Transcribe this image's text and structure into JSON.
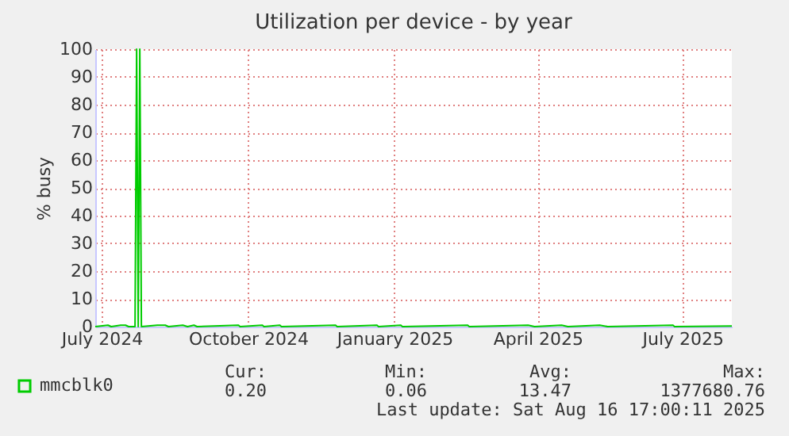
{
  "chart_data": {
    "type": "line",
    "title": "Utilization per device - by year",
    "ylabel": "% busy",
    "x": [
      "2024-07-12",
      "2024-07-20",
      "2024-07-22",
      "2024-07-28",
      "2024-07-31",
      "2024-08-02",
      "2024-08-06",
      "2024-08-07",
      "2024-08-08",
      "2024-08-09",
      "2024-08-10",
      "2024-08-20",
      "2024-08-25",
      "2024-08-27",
      "2024-09-05",
      "2024-09-08",
      "2024-09-12",
      "2024-09-14",
      "2024-10-10",
      "2024-10-11",
      "2024-10-25",
      "2024-10-26",
      "2024-11-05",
      "2024-11-06",
      "2024-12-10",
      "2024-12-11",
      "2025-01-05",
      "2025-01-06",
      "2025-01-20",
      "2025-01-21",
      "2025-03-03",
      "2025-03-04",
      "2025-04-10",
      "2025-04-14",
      "2025-05-01",
      "2025-05-05",
      "2025-05-25",
      "2025-05-30",
      "2025-07-10",
      "2025-07-11",
      "2025-08-16"
    ],
    "series": [
      {
        "name": "mmcblk0",
        "color": "#00cc00",
        "values": [
          0,
          0.5,
          0,
          0.5,
          0.5,
          0,
          0,
          100,
          0,
          100,
          0,
          0.5,
          0.5,
          0,
          0.5,
          0,
          0.5,
          0,
          0.5,
          0,
          0.5,
          0,
          0.5,
          0,
          0.5,
          0,
          0.5,
          0,
          0.5,
          0,
          0.5,
          0,
          0.5,
          0,
          0.5,
          0,
          0.5,
          0,
          0.5,
          0,
          0.2
        ]
      }
    ],
    "xlim": [
      "2024-07-12",
      "2025-08-16"
    ],
    "xticks": [
      {
        "value": "2024-07-16",
        "label": "July 2024"
      },
      {
        "value": "2024-10-16",
        "label": "October 2024"
      },
      {
        "value": "2025-01-16",
        "label": "January 2025"
      },
      {
        "value": "2025-04-16",
        "label": "April 2025"
      },
      {
        "value": "2025-07-16",
        "label": "July 2025"
      }
    ],
    "ylim": [
      0,
      100
    ],
    "yticks": [
      0,
      10,
      20,
      30,
      40,
      50,
      60,
      70,
      80,
      90,
      100
    ],
    "grid": true,
    "legend": "bottom left",
    "annotations": [
      "Cur:",
      "Min:",
      "Avg:",
      "Max:",
      "0.20",
      "0.06",
      "13.47",
      "1377680.76",
      "Last update: Sat Aug 16 17:00:11 2025"
    ]
  }
}
